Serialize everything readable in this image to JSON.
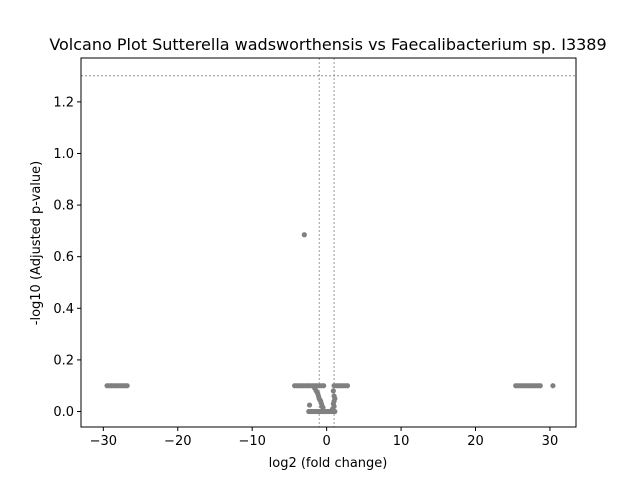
{
  "chart_data": {
    "type": "scatter",
    "title": "Volcano Plot Sutterella wadsworthensis vs Faecalibacterium sp. I3389",
    "xlabel": "log2 (fold change)",
    "ylabel": "-log10 (Adjusted p-value)",
    "xlim": [
      -33,
      33.5
    ],
    "ylim": [
      -0.06,
      1.37
    ],
    "x_ticks": [
      -30,
      -20,
      -10,
      0,
      10,
      20,
      30
    ],
    "y_ticks": [
      0.0,
      0.2,
      0.4,
      0.6,
      0.8,
      1.0,
      1.2
    ],
    "x_tick_labels": [
      "−30",
      "−20",
      "−10",
      "0",
      "10",
      "20",
      "30"
    ],
    "y_tick_labels": [
      "0.0",
      "0.2",
      "0.4",
      "0.6",
      "0.8",
      "1.0",
      "1.2"
    ],
    "threshold_lines": {
      "horizontal_y": 1.301,
      "vertical_x": [
        -1,
        1
      ]
    },
    "marker_color": "#808080",
    "grid": false,
    "points": [
      {
        "x": -29.5,
        "y": 0.1
      },
      {
        "x": -29.2,
        "y": 0.1
      },
      {
        "x": -28.9,
        "y": 0.1
      },
      {
        "x": -28.6,
        "y": 0.1
      },
      {
        "x": -28.3,
        "y": 0.1
      },
      {
        "x": -28.0,
        "y": 0.1
      },
      {
        "x": -27.7,
        "y": 0.1
      },
      {
        "x": -27.4,
        "y": 0.1
      },
      {
        "x": -27.1,
        "y": 0.1
      },
      {
        "x": -26.8,
        "y": 0.1
      },
      {
        "x": -3.0,
        "y": 0.685
      },
      {
        "x": -4.3,
        "y": 0.1
      },
      {
        "x": -4.0,
        "y": 0.1
      },
      {
        "x": -3.7,
        "y": 0.1
      },
      {
        "x": -3.4,
        "y": 0.1
      },
      {
        "x": -3.1,
        "y": 0.1
      },
      {
        "x": -2.8,
        "y": 0.1
      },
      {
        "x": -2.5,
        "y": 0.1
      },
      {
        "x": -2.2,
        "y": 0.1
      },
      {
        "x": -1.9,
        "y": 0.1
      },
      {
        "x": -1.6,
        "y": 0.1
      },
      {
        "x": -1.3,
        "y": 0.1
      },
      {
        "x": -1.0,
        "y": 0.1
      },
      {
        "x": -0.7,
        "y": 0.1
      },
      {
        "x": -0.4,
        "y": 0.1
      },
      {
        "x": 1.0,
        "y": 0.1
      },
      {
        "x": 1.3,
        "y": 0.1
      },
      {
        "x": 1.6,
        "y": 0.1
      },
      {
        "x": 1.9,
        "y": 0.1
      },
      {
        "x": 2.2,
        "y": 0.1
      },
      {
        "x": 2.5,
        "y": 0.1
      },
      {
        "x": 2.8,
        "y": 0.1
      },
      {
        "x": -1.6,
        "y": 0.09
      },
      {
        "x": -1.4,
        "y": 0.08
      },
      {
        "x": -1.2,
        "y": 0.07
      },
      {
        "x": -1.1,
        "y": 0.06
      },
      {
        "x": -1.0,
        "y": 0.05
      },
      {
        "x": -0.9,
        "y": 0.045
      },
      {
        "x": -0.8,
        "y": 0.04
      },
      {
        "x": -0.7,
        "y": 0.03
      },
      {
        "x": -0.6,
        "y": 0.02
      },
      {
        "x": -0.5,
        "y": 0.015
      },
      {
        "x": 0.9,
        "y": 0.08
      },
      {
        "x": 1.0,
        "y": 0.06
      },
      {
        "x": 1.1,
        "y": 0.05
      },
      {
        "x": 1.0,
        "y": 0.04
      },
      {
        "x": 0.9,
        "y": 0.03
      },
      {
        "x": 1.0,
        "y": 0.02
      },
      {
        "x": 0.8,
        "y": 0.01
      },
      {
        "x": -2.3,
        "y": 0.025
      },
      {
        "x": -2.4,
        "y": 0.0
      },
      {
        "x": -2.1,
        "y": 0.0
      },
      {
        "x": -1.8,
        "y": 0.0
      },
      {
        "x": -1.5,
        "y": 0.0
      },
      {
        "x": -1.2,
        "y": 0.0
      },
      {
        "x": -0.9,
        "y": 0.0
      },
      {
        "x": -0.6,
        "y": 0.0
      },
      {
        "x": -0.3,
        "y": 0.0
      },
      {
        "x": 0.0,
        "y": 0.0
      },
      {
        "x": 0.3,
        "y": 0.0
      },
      {
        "x": 0.6,
        "y": 0.0
      },
      {
        "x": 0.9,
        "y": 0.0
      },
      {
        "x": 1.1,
        "y": 0.0
      },
      {
        "x": 25.4,
        "y": 0.1
      },
      {
        "x": 25.7,
        "y": 0.1
      },
      {
        "x": 26.0,
        "y": 0.1
      },
      {
        "x": 26.3,
        "y": 0.1
      },
      {
        "x": 26.6,
        "y": 0.1
      },
      {
        "x": 26.9,
        "y": 0.1
      },
      {
        "x": 27.2,
        "y": 0.1
      },
      {
        "x": 27.5,
        "y": 0.1
      },
      {
        "x": 27.8,
        "y": 0.1
      },
      {
        "x": 28.1,
        "y": 0.1
      },
      {
        "x": 28.4,
        "y": 0.1
      },
      {
        "x": 28.7,
        "y": 0.1
      },
      {
        "x": 30.4,
        "y": 0.1
      }
    ]
  }
}
